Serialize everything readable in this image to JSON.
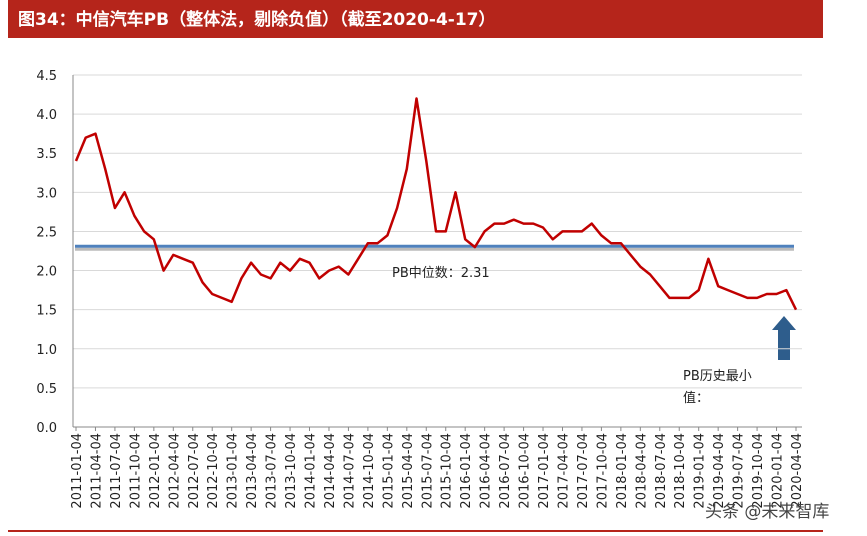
{
  "chart_data": {
    "type": "line",
    "title": "图34：中信汽车PB（整体法，剔除负值）（截至2020-4-17）",
    "categories": [
      "2011-01-04",
      null,
      "2011-04-04",
      null,
      "2011-07-04",
      null,
      "2011-10-04",
      null,
      "2012-01-04",
      null,
      "2012-04-04",
      null,
      "2012-07-04",
      null,
      "2012-10-04",
      null,
      "2013-01-04",
      null,
      "2013-04-04",
      null,
      "2013-07-04",
      null,
      "2013-10-04",
      null,
      "2014-01-04",
      null,
      "2014-04-04",
      null,
      "2014-07-04",
      null,
      "2014-10-04",
      null,
      "2015-01-04",
      null,
      "2015-04-04",
      null,
      "2015-07-04",
      null,
      "2015-10-04",
      null,
      "2016-01-04",
      null,
      "2016-04-04",
      null,
      "2016-07-04",
      null,
      "2016-10-04",
      null,
      "2017-01-04",
      null,
      "2017-04-04",
      null,
      "2017-07-04",
      null,
      "2017-10-04",
      null,
      "2018-01-04",
      null,
      "2018-04-04",
      null,
      "2018-07-04",
      null,
      "2018-10-04",
      null,
      "2019-01-04",
      null,
      "2019-04-04",
      null,
      "2019-07-04",
      null,
      "2019-10-04",
      null,
      "2020-01-04",
      null,
      "2020-04-04"
    ],
    "series": [
      {
        "color": "#c00000",
        "values": [
          3.4,
          3.7,
          3.75,
          3.3,
          2.8,
          3.0,
          2.7,
          2.5,
          2.4,
          2.0,
          2.2,
          2.15,
          2.1,
          1.85,
          1.7,
          1.65,
          1.6,
          1.9,
          2.1,
          1.95,
          1.9,
          2.1,
          2.0,
          2.15,
          2.1,
          1.9,
          2.0,
          2.05,
          1.95,
          2.15,
          2.35,
          2.35,
          2.45,
          2.8,
          3.3,
          4.2,
          3.4,
          2.5,
          2.5,
          3.0,
          2.4,
          2.3,
          2.5,
          2.6,
          2.6,
          2.65,
          2.6,
          2.6,
          2.55,
          2.4,
          2.5,
          2.5,
          2.5,
          2.6,
          2.45,
          2.35,
          2.35,
          2.2,
          2.05,
          1.95,
          1.8,
          1.65,
          1.65,
          1.65,
          1.75,
          2.15,
          1.8,
          1.75,
          1.7,
          1.65,
          1.65,
          1.7,
          1.7,
          1.75,
          1.5
        ]
      }
    ],
    "median": {
      "value": 2.31,
      "label": "PB中位数：2.31",
      "color": "#4f81bd"
    },
    "min_label": "PB历史最小值：",
    "watermark": "头条 @未来智库",
    "ylim": [
      0,
      4.5
    ],
    "yticks": [
      {
        "value": 0,
        "label": "0.0"
      },
      {
        "value": 0.5,
        "label": "0.5"
      },
      {
        "value": 1,
        "label": "1.0"
      },
      {
        "value": 1.5,
        "label": "1.5"
      },
      {
        "value": 2,
        "label": "2.0"
      },
      {
        "value": 2.5,
        "label": "2.5"
      },
      {
        "value": 3,
        "label": "3.0"
      },
      {
        "value": 3.5,
        "label": "3.5"
      },
      {
        "value": 4,
        "label": "4.0"
      },
      {
        "value": 4.5,
        "label": "4.5"
      }
    ],
    "grid": true
  }
}
